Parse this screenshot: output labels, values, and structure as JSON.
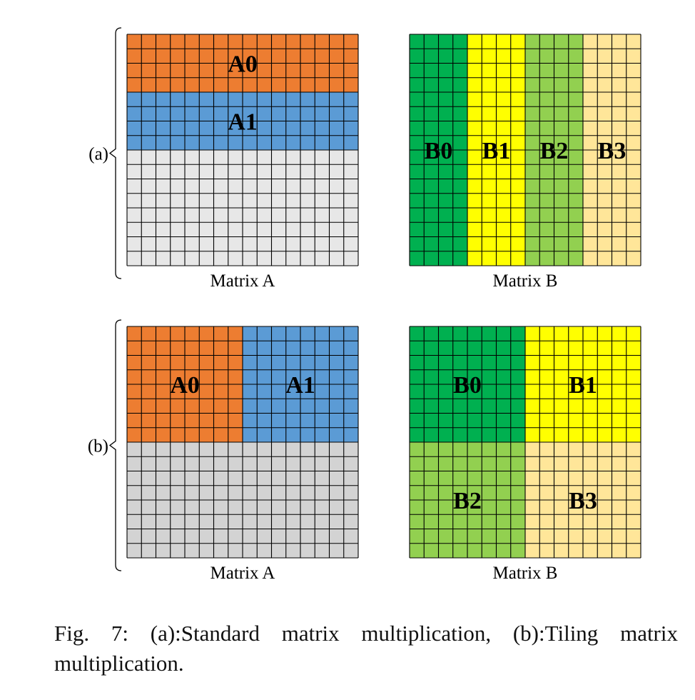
{
  "colors": {
    "orange": "#ED7D31",
    "blue": "#5B9BD5",
    "light_gray": "#E7E7E7",
    "gray": "#D3D3D3",
    "dark_green": "#00B050",
    "yellow": "#FFFF00",
    "light_green": "#92D050",
    "tan": "#FFE699",
    "grid_line": "#000000"
  },
  "grid": {
    "rows": 16,
    "cols": 16
  },
  "panels": [
    {
      "label": "(a)",
      "matrix_a": {
        "caption": "Matrix A",
        "blocks": [
          {
            "label": "A0",
            "rows": [
              0,
              4
            ],
            "cols": [
              0,
              16
            ],
            "color": "#ED7D31"
          },
          {
            "label": "A1",
            "rows": [
              4,
              8
            ],
            "cols": [
              0,
              16
            ],
            "color": "#5B9BD5"
          },
          {
            "label": "",
            "rows": [
              8,
              16
            ],
            "cols": [
              0,
              16
            ],
            "color": "#E7E7E7"
          }
        ]
      },
      "matrix_b": {
        "caption": "Matrix B",
        "blocks": [
          {
            "label": "B0",
            "rows": [
              0,
              16
            ],
            "cols": [
              0,
              4
            ],
            "color": "#00B050"
          },
          {
            "label": "B1",
            "rows": [
              0,
              16
            ],
            "cols": [
              4,
              8
            ],
            "color": "#FFFF00"
          },
          {
            "label": "B2",
            "rows": [
              0,
              16
            ],
            "cols": [
              8,
              12
            ],
            "color": "#92D050"
          },
          {
            "label": "B3",
            "rows": [
              0,
              16
            ],
            "cols": [
              12,
              16
            ],
            "color": "#FFE699"
          }
        ]
      }
    },
    {
      "label": "(b)",
      "matrix_a": {
        "caption": "Matrix A",
        "blocks": [
          {
            "label": "A0",
            "rows": [
              0,
              8
            ],
            "cols": [
              0,
              8
            ],
            "color": "#ED7D31"
          },
          {
            "label": "A1",
            "rows": [
              0,
              8
            ],
            "cols": [
              8,
              16
            ],
            "color": "#5B9BD5"
          },
          {
            "label": "",
            "rows": [
              8,
              16
            ],
            "cols": [
              0,
              16
            ],
            "color": "#D3D3D3"
          }
        ]
      },
      "matrix_b": {
        "caption": "Matrix B",
        "blocks": [
          {
            "label": "B0",
            "rows": [
              0,
              8
            ],
            "cols": [
              0,
              8
            ],
            "color": "#00B050"
          },
          {
            "label": "B1",
            "rows": [
              0,
              8
            ],
            "cols": [
              8,
              16
            ],
            "color": "#FFFF00"
          },
          {
            "label": "B2",
            "rows": [
              8,
              16
            ],
            "cols": [
              0,
              8
            ],
            "color": "#92D050"
          },
          {
            "label": "B3",
            "rows": [
              8,
              16
            ],
            "cols": [
              8,
              16
            ],
            "color": "#FFE699"
          }
        ]
      }
    }
  ],
  "caption": "Fig. 7: (a):Standard matrix multiplication, (b):Tiling matrix multiplication."
}
